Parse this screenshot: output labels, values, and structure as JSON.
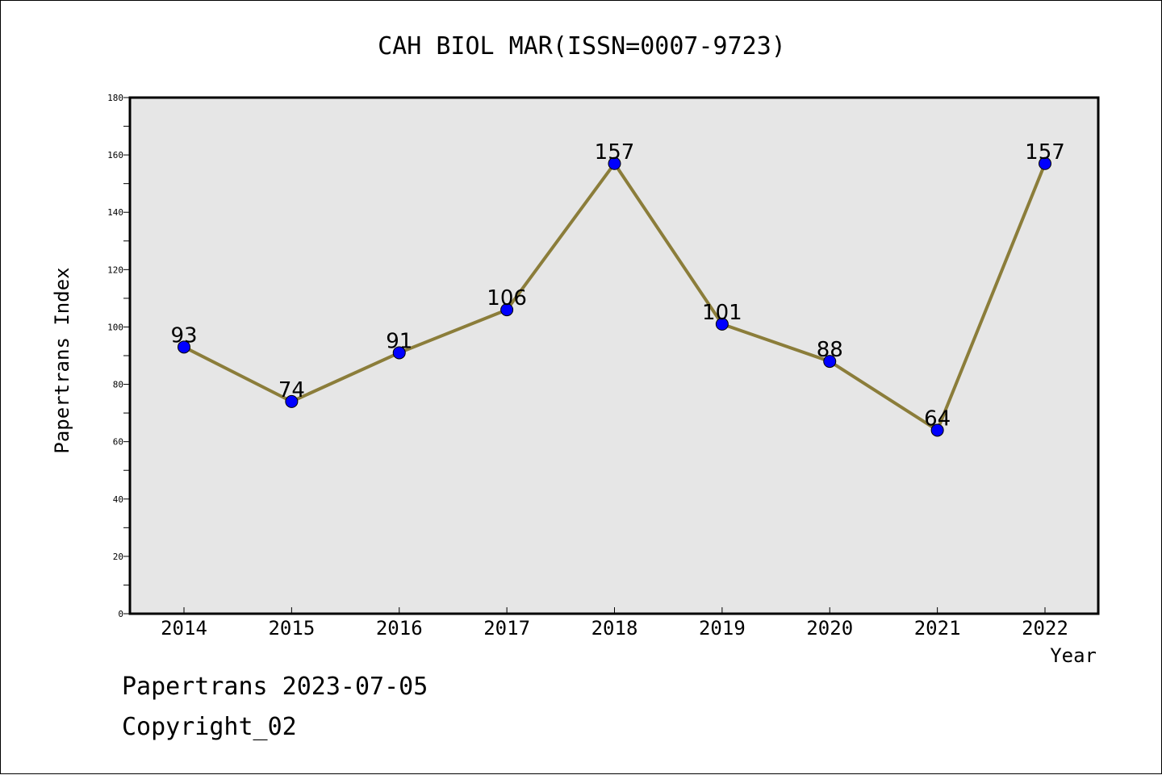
{
  "chart_data": {
    "type": "line",
    "title": "CAH BIOL MAR(ISSN=0007-9723)",
    "xlabel": "Year",
    "ylabel": "Papertrans Index",
    "categories": [
      "2014",
      "2015",
      "2016",
      "2017",
      "2018",
      "2019",
      "2020",
      "2021",
      "2022"
    ],
    "values": [
      93,
      74,
      91,
      106,
      157,
      101,
      88,
      64,
      157
    ],
    "data_labels": [
      "93",
      "74",
      "91",
      "106",
      "157",
      "101",
      "88",
      "64",
      "157"
    ],
    "ylim": [
      0,
      180
    ],
    "yticks": [
      0,
      20,
      40,
      60,
      80,
      100,
      120,
      140,
      160,
      180
    ],
    "ytick_labels": [
      "0",
      "20",
      "40",
      "60",
      "80",
      "100",
      "120",
      "140",
      "160",
      "180"
    ],
    "grid": false,
    "plot_background": "#e6e6e6",
    "line_color": "#8b7d3a",
    "marker_color": "#0000ff"
  },
  "footer": {
    "line1": "Papertrans 2023-07-05",
    "line2": "Copyright_02"
  }
}
